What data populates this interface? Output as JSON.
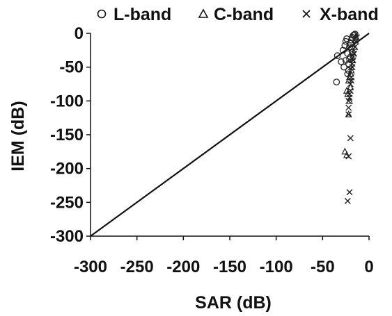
{
  "chart_data": {
    "type": "scatter",
    "title": "",
    "xlabel": "SAR (dB)",
    "ylabel": "IEM (dB)",
    "xlim": [
      -300,
      0
    ],
    "ylim": [
      -300,
      0
    ],
    "xticks": [
      "-300",
      "-250",
      "-200",
      "-150",
      "-100",
      "-50",
      "0"
    ],
    "yticks": [
      "0",
      "-50",
      "-100",
      "-150",
      "-200",
      "-250",
      "-300"
    ],
    "tick_values": [
      -300,
      -250,
      -200,
      -150,
      -100,
      -50,
      0
    ],
    "grid": false,
    "legend_position": "top",
    "reference_line": {
      "type": "1:1",
      "from": [
        -300,
        -300
      ],
      "to": [
        0,
        0
      ]
    },
    "series": [
      {
        "name": "L-band",
        "marker": "circle",
        "points": [
          [
            -34,
            -33
          ],
          [
            -35,
            -72
          ],
          [
            -30,
            -42
          ],
          [
            -28,
            -25
          ],
          [
            -26,
            -18
          ],
          [
            -25,
            -12
          ],
          [
            -24,
            -8
          ],
          [
            -23,
            -30
          ],
          [
            -22,
            -45
          ],
          [
            -21,
            -20
          ],
          [
            -20,
            -15
          ],
          [
            -19,
            -10
          ],
          [
            -18,
            -6
          ],
          [
            -17,
            -3
          ],
          [
            -16,
            -2
          ],
          [
            -15,
            -1
          ],
          [
            -22,
            -55
          ],
          [
            -20,
            -35
          ],
          [
            -18,
            -28
          ],
          [
            -25,
            -40
          ],
          [
            -27,
            -50
          ],
          [
            -23,
            -60
          ],
          [
            -21,
            -38
          ],
          [
            -19,
            -22
          ]
        ]
      },
      {
        "name": "C-band",
        "marker": "triangle",
        "points": [
          [
            -26,
            -175
          ],
          [
            -24,
            -180
          ],
          [
            -22,
            -120
          ],
          [
            -21,
            -100
          ],
          [
            -20,
            -80
          ],
          [
            -23,
            -90
          ],
          [
            -22,
            -70
          ],
          [
            -20,
            -60
          ],
          [
            -19,
            -50
          ],
          [
            -18,
            -40
          ],
          [
            -17,
            -30
          ],
          [
            -16,
            -20
          ],
          [
            -15,
            -10
          ],
          [
            -14,
            -5
          ],
          [
            -21,
            -65
          ],
          [
            -19,
            -55
          ],
          [
            -24,
            -85
          ],
          [
            -18,
            -35
          ]
        ]
      },
      {
        "name": "X-band",
        "marker": "x",
        "points": [
          [
            -22,
            -120
          ],
          [
            -20,
            -155
          ],
          [
            -22,
            -182
          ],
          [
            -21,
            -235
          ],
          [
            -23,
            -248
          ],
          [
            -22,
            -100
          ],
          [
            -21,
            -90
          ],
          [
            -20,
            -75
          ],
          [
            -19,
            -65
          ],
          [
            -18,
            -50
          ],
          [
            -17,
            -40
          ],
          [
            -16,
            -30
          ],
          [
            -15,
            -20
          ],
          [
            -14,
            -12
          ],
          [
            -13,
            -6
          ],
          [
            -20,
            -85
          ],
          [
            -19,
            -70
          ],
          [
            -18,
            -45
          ],
          [
            -21,
            -95
          ],
          [
            -22,
            -110
          ]
        ]
      }
    ]
  }
}
